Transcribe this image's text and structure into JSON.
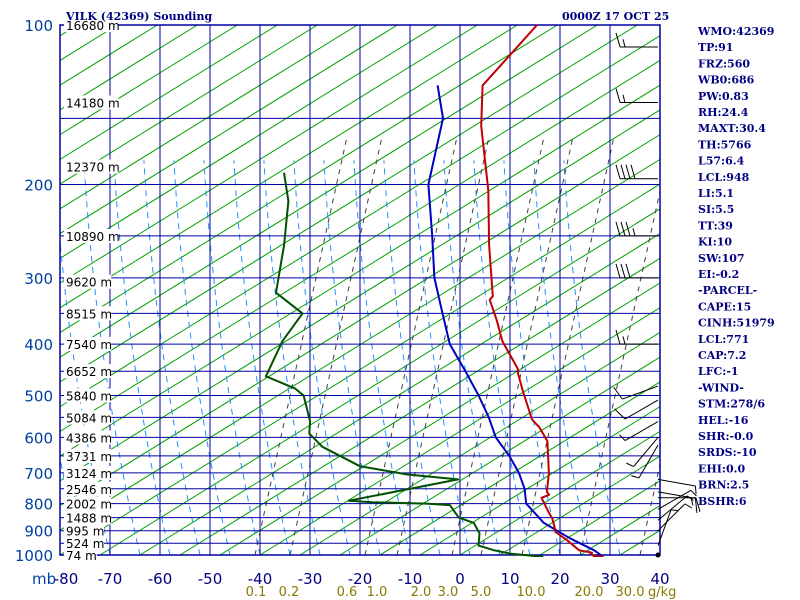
{
  "header": {
    "title": "VILK (42369) Sounding",
    "datetime": "0000Z 17 OCT 25"
  },
  "indices": [
    "WMO:42369",
    "TP:91",
    "FRZ:560",
    "WB0:686",
    "PW:0.83",
    "RH:24.4",
    "MAXT:30.4",
    "TH:5766",
    "L57:6.4",
    "LCL:948",
    "LI:5.1",
    "SI:5.5",
    "TT:39",
    "KI:10",
    "SW:107",
    "EI:-0.2",
    "-PARCEL-",
    "CAPE:15",
    "CINH:51979",
    "LCL:771",
    "CAP:7.2",
    "LFC:-1",
    "-WIND-",
    "STM:278/6",
    "HEL:-16",
    "SHR:-0.0",
    "SRDS:-10",
    "EHI:0.0",
    "BRN:2.5",
    "BSHR:6"
  ],
  "colors": {
    "isobar": "#0000a0",
    "isotherm": "#0000a0",
    "dry_adiabat": "#00a000",
    "moist_adiabat": "#2090ff",
    "mixing_ratio": "#404040",
    "temperature": "#c00000",
    "dewpoint": "#005000",
    "parcel": "#0000c0",
    "wind_barb": "#000000"
  },
  "chart_data": {
    "type": "skew-t",
    "title": "VILK (42369) Sounding",
    "p_axis_unit": "mb",
    "p_ticks": [
      100,
      200,
      300,
      400,
      500,
      600,
      700,
      800,
      900,
      1000
    ],
    "isobars": [
      100,
      150,
      200,
      250,
      300,
      350,
      400,
      450,
      500,
      550,
      600,
      650,
      700,
      750,
      800,
      850,
      900,
      950,
      1000
    ],
    "t_ticks": [
      -80,
      -70,
      -60,
      -50,
      -40,
      -30,
      -20,
      -10,
      0,
      10,
      20,
      30,
      40
    ],
    "t_tick_labels": [
      "-80",
      "-70",
      "-60",
      "-50",
      "-40",
      "-30",
      "-20",
      "-10",
      "0",
      "10",
      "20",
      "30",
      "40"
    ],
    "mixing_ratio_unit": "g/kg",
    "mixing_ratio_labels": [
      "0.1",
      "0.2",
      "0.6",
      "1.0",
      "2.0",
      "3.0",
      "5.0",
      "10.0",
      "20.0",
      "30.0"
    ],
    "height_labels": [
      {
        "p": 100,
        "text": "16680 m"
      },
      {
        "p": 140,
        "text": "14180 m"
      },
      {
        "p": 185,
        "text": "12370 m"
      },
      {
        "p": 250,
        "text": "10890 m"
      },
      {
        "p": 305,
        "text": "9620 m"
      },
      {
        "p": 350,
        "text": "8515 m"
      },
      {
        "p": 400,
        "text": "7540 m"
      },
      {
        "p": 450,
        "text": "6652 m"
      },
      {
        "p": 500,
        "text": "5840 m"
      },
      {
        "p": 550,
        "text": "5084 m"
      },
      {
        "p": 600,
        "text": "4386 m"
      },
      {
        "p": 650,
        "text": "3731 m"
      },
      {
        "p": 700,
        "text": "3124 m"
      },
      {
        "p": 750,
        "text": "2546 m"
      },
      {
        "p": 800,
        "text": "2002 m"
      },
      {
        "p": 850,
        "text": "1488 m"
      },
      {
        "p": 900,
        "text": "995 m"
      },
      {
        "p": 950,
        "text": "524 m"
      },
      {
        "p": 1000,
        "text": "74 m"
      }
    ],
    "temperature": [
      [
        100,
        -80
      ],
      [
        130,
        -80
      ],
      [
        155,
        -73
      ],
      [
        205,
        -60
      ],
      [
        260,
        -50
      ],
      [
        325,
        -40
      ],
      [
        330,
        -40
      ],
      [
        360,
        -35
      ],
      [
        395,
        -30
      ],
      [
        445,
        -22
      ],
      [
        455,
        -21
      ],
      [
        490,
        -17
      ],
      [
        555,
        -10
      ],
      [
        575,
        -7
      ],
      [
        610,
        -3
      ],
      [
        700,
        3
      ],
      [
        760,
        6
      ],
      [
        770,
        7
      ],
      [
        780,
        6
      ],
      [
        830,
        10
      ],
      [
        855,
        12
      ],
      [
        905,
        15
      ],
      [
        940,
        19
      ],
      [
        980,
        23
      ],
      [
        990,
        26
      ],
      [
        995,
        26
      ],
      [
        1005,
        27
      ],
      [
        1008,
        29
      ]
    ],
    "dewpoint": [
      [
        190,
        -104
      ],
      [
        215,
        -98
      ],
      [
        260,
        -91
      ],
      [
        320,
        -84
      ],
      [
        350,
        -75
      ],
      [
        395,
        -74
      ],
      [
        460,
        -71
      ],
      [
        485,
        -63
      ],
      [
        500,
        -60
      ],
      [
        560,
        -54
      ],
      [
        590,
        -52
      ],
      [
        625,
        -47
      ],
      [
        680,
        -36
      ],
      [
        705,
        -25
      ],
      [
        720,
        -14
      ],
      [
        790,
        -32
      ],
      [
        795,
        -27
      ],
      [
        800,
        -16
      ],
      [
        805,
        -11
      ],
      [
        850,
        -7
      ],
      [
        870,
        -3
      ],
      [
        910,
        0
      ],
      [
        960,
        2
      ],
      [
        980,
        6
      ],
      [
        995,
        10
      ],
      [
        1008,
        17
      ]
    ],
    "parcel": [
      [
        1008,
        29
      ],
      [
        980,
        26
      ],
      [
        930,
        19
      ],
      [
        870,
        11
      ],
      [
        800,
        4
      ],
      [
        750,
        1
      ],
      [
        700,
        -3
      ],
      [
        650,
        -8
      ],
      [
        600,
        -14
      ],
      [
        550,
        -19
      ],
      [
        500,
        -25
      ],
      [
        450,
        -32
      ],
      [
        400,
        -40
      ],
      [
        350,
        -47
      ],
      [
        300,
        -55
      ],
      [
        250,
        -63
      ],
      [
        200,
        -73
      ],
      [
        150,
        -82
      ],
      [
        130,
        -89
      ]
    ],
    "wind": [
      {
        "p": 110,
        "dir": 270,
        "spd": 15
      },
      {
        "p": 140,
        "dir": 270,
        "spd": 15
      },
      {
        "p": 195,
        "dir": 270,
        "spd": 40
      },
      {
        "p": 250,
        "dir": 270,
        "spd": 35
      },
      {
        "p": 300,
        "dir": 270,
        "spd": 30
      },
      {
        "p": 400,
        "dir": 270,
        "spd": 15
      },
      {
        "p": 480,
        "dir": 250,
        "spd": 10
      },
      {
        "p": 510,
        "dir": 240,
        "spd": 10
      },
      {
        "p": 560,
        "dir": 240,
        "spd": 5
      },
      {
        "p": 600,
        "dir": 220,
        "spd": 5
      },
      {
        "p": 620,
        "dir": 210,
        "spd": 5
      },
      {
        "p": 720,
        "dir": 100,
        "spd": 5
      },
      {
        "p": 760,
        "dir": 100,
        "spd": 10
      },
      {
        "p": 780,
        "dir": 90,
        "spd": 15
      },
      {
        "p": 820,
        "dir": 60,
        "spd": 5
      },
      {
        "p": 860,
        "dir": 50,
        "spd": 5
      },
      {
        "p": 900,
        "dir": 45,
        "spd": 5
      },
      {
        "p": 960,
        "dir": 20,
        "spd": 5
      },
      {
        "p": 1000,
        "dir": 0,
        "spd": 0
      }
    ]
  }
}
